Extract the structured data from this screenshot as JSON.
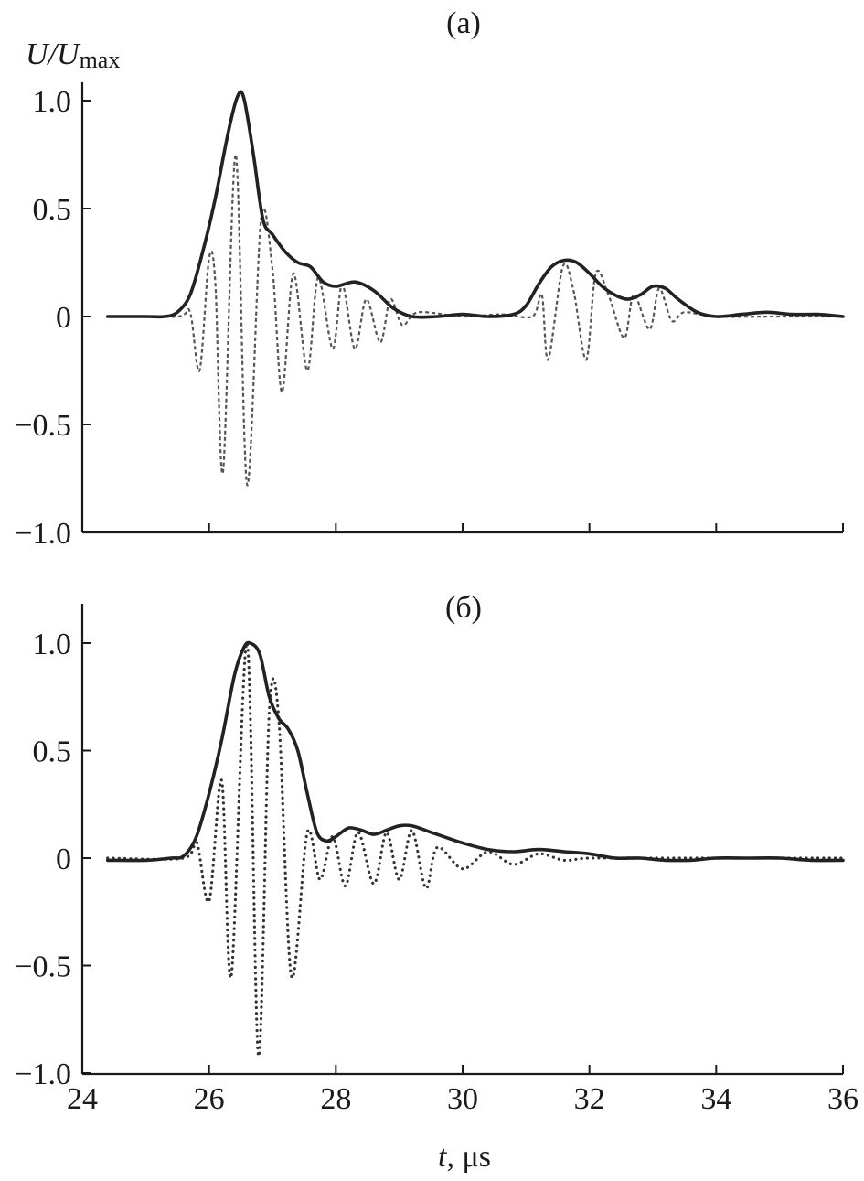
{
  "figure": {
    "ylabel_main": "U/U",
    "ylabel_sub": "max",
    "xlabel_var": "t",
    "xlabel_unit": ", μs"
  },
  "chart_data": [
    {
      "type": "line",
      "panel_label": "(а)",
      "title": "",
      "xlim": [
        24.4,
        36
      ],
      "ylim": [
        -1.0,
        1.1
      ],
      "xticks": [
        26,
        28,
        30,
        32,
        34,
        36
      ],
      "yticks": [
        1.0,
        0.5,
        0,
        -0.5,
        -1.0
      ],
      "ytick_labels": [
        "1.0",
        "0.5",
        "0",
        "−0.5",
        "−1.0"
      ],
      "show_x_tick_labels": false,
      "grid": false,
      "colors": {
        "envelope": "#222222",
        "signal": "#555555"
      },
      "series": [
        {
          "style": "solid",
          "x": [
            24.4,
            25.0,
            25.3,
            25.5,
            25.7,
            25.9,
            26.1,
            26.3,
            26.45,
            26.55,
            26.7,
            26.85,
            27.0,
            27.2,
            27.4,
            27.6,
            27.8,
            28.0,
            28.3,
            28.6,
            28.9,
            29.2,
            29.6,
            30.0,
            30.4,
            30.8,
            31.0,
            31.2,
            31.4,
            31.6,
            31.8,
            32.0,
            32.2,
            32.4,
            32.6,
            32.8,
            33.0,
            33.2,
            33.4,
            33.7,
            34.0,
            34.4,
            34.8,
            35.2,
            35.6,
            36.0
          ],
          "y": [
            0.0,
            0.0,
            0.0,
            0.02,
            0.1,
            0.3,
            0.55,
            0.85,
            1.02,
            1.01,
            0.75,
            0.45,
            0.38,
            0.3,
            0.25,
            0.23,
            0.16,
            0.14,
            0.16,
            0.12,
            0.04,
            0.0,
            0.0,
            0.01,
            0.0,
            0.01,
            0.05,
            0.15,
            0.23,
            0.26,
            0.25,
            0.2,
            0.14,
            0.1,
            0.08,
            0.1,
            0.14,
            0.13,
            0.08,
            0.02,
            0.0,
            0.01,
            0.02,
            0.01,
            0.01,
            0.0
          ]
        },
        {
          "style": "dashed",
          "x": [
            24.4,
            25.5,
            25.7,
            25.85,
            26.0,
            26.1,
            26.22,
            26.42,
            26.6,
            26.82,
            27.0,
            27.15,
            27.33,
            27.55,
            27.72,
            27.95,
            28.1,
            28.3,
            28.48,
            28.7,
            28.86,
            29.05,
            29.3,
            30.0,
            30.6,
            31.1,
            31.25,
            31.35,
            31.58,
            31.75,
            31.95,
            32.1,
            32.3,
            32.55,
            32.7,
            32.95,
            33.1,
            33.3,
            33.5,
            34.0,
            35.0,
            36.0
          ],
          "y": [
            0.0,
            0.0,
            0.02,
            -0.25,
            0.27,
            0.15,
            -0.72,
            0.75,
            -0.78,
            0.45,
            0.22,
            -0.35,
            0.2,
            -0.25,
            0.18,
            -0.15,
            0.15,
            -0.15,
            0.08,
            -0.12,
            0.08,
            -0.04,
            0.02,
            0.0,
            0.01,
            0.0,
            0.1,
            -0.2,
            0.23,
            0.12,
            -0.2,
            0.2,
            0.1,
            -0.1,
            0.1,
            -0.06,
            0.13,
            -0.02,
            0.02,
            0.0,
            0.0,
            0.0
          ]
        }
      ]
    },
    {
      "type": "line",
      "panel_label": "(б)",
      "title": "",
      "xlim": [
        24.4,
        36
      ],
      "ylim": [
        -1.0,
        1.1
      ],
      "xticks": [
        24,
        26,
        28,
        30,
        32,
        34,
        36
      ],
      "xtick_labels": [
        "24",
        "26",
        "28",
        "30",
        "32",
        "34",
        "36"
      ],
      "yticks": [
        1.0,
        0.5,
        0,
        -0.5,
        -1.0
      ],
      "ytick_labels": [
        "1.0",
        "0.5",
        "0",
        "−0.5",
        "−1.0"
      ],
      "show_x_tick_labels": true,
      "grid": false,
      "colors": {
        "envelope": "#222222",
        "signal": "#333333"
      },
      "series": [
        {
          "style": "solid",
          "x": [
            24.4,
            25.0,
            25.4,
            25.6,
            25.8,
            26.0,
            26.2,
            26.4,
            26.55,
            26.65,
            26.8,
            26.95,
            27.1,
            27.25,
            27.4,
            27.55,
            27.7,
            27.85,
            28.0,
            28.2,
            28.4,
            28.6,
            28.8,
            29.0,
            29.2,
            29.5,
            29.8,
            30.0,
            30.4,
            30.8,
            31.2,
            31.6,
            32.0,
            32.4,
            32.8,
            33.2,
            33.6,
            34.0,
            34.5,
            35.0,
            35.5,
            36.0
          ],
          "y": [
            -0.01,
            -0.01,
            0.0,
            0.01,
            0.1,
            0.3,
            0.55,
            0.85,
            0.98,
            1.0,
            0.95,
            0.75,
            0.65,
            0.6,
            0.5,
            0.3,
            0.12,
            0.08,
            0.1,
            0.14,
            0.13,
            0.11,
            0.13,
            0.15,
            0.15,
            0.12,
            0.09,
            0.07,
            0.04,
            0.03,
            0.04,
            0.03,
            0.02,
            0.0,
            0.0,
            -0.01,
            -0.01,
            0.0,
            0.0,
            0.0,
            -0.01,
            -0.01
          ]
        },
        {
          "style": "dotted",
          "x": [
            24.4,
            25.6,
            25.8,
            26.0,
            26.2,
            26.35,
            26.6,
            26.78,
            26.95,
            27.1,
            27.3,
            27.55,
            27.75,
            27.95,
            28.15,
            28.35,
            28.6,
            28.8,
            29.0,
            29.2,
            29.42,
            29.6,
            30.0,
            30.4,
            30.8,
            31.2,
            31.6,
            32.0,
            33.0,
            34.0,
            36.0
          ],
          "y": [
            0.0,
            0.0,
            0.08,
            -0.2,
            0.36,
            -0.55,
            1.0,
            -0.92,
            0.68,
            0.65,
            -0.55,
            0.12,
            -0.1,
            0.1,
            -0.13,
            0.12,
            -0.12,
            0.12,
            -0.1,
            0.13,
            -0.14,
            0.05,
            -0.05,
            0.03,
            -0.03,
            0.02,
            -0.01,
            0.0,
            0.0,
            0.0,
            0.0
          ]
        }
      ]
    }
  ]
}
